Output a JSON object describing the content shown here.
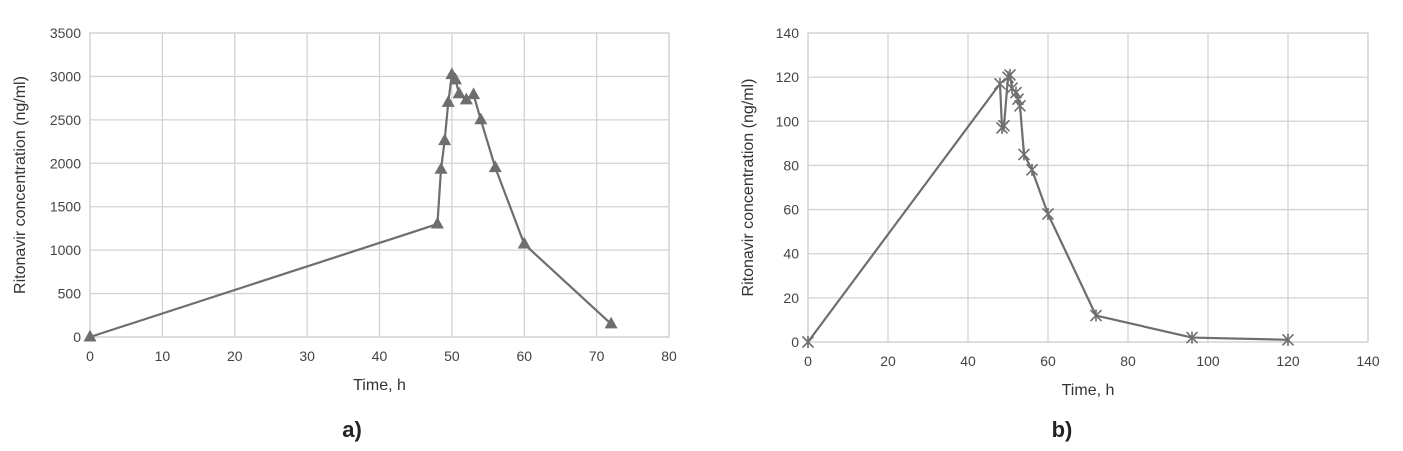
{
  "colors": {
    "series": "#6e6e6e",
    "grid": "#d3d3d3",
    "text": "#444444"
  },
  "chart_data": [
    {
      "type": "line",
      "panel_label": "a)",
      "xlabel": "Time, h",
      "ylabel": "Ritonavir concentration (ng/ml)",
      "xlim": [
        0,
        80
      ],
      "ylim": [
        0,
        3500
      ],
      "x_ticks": [
        0,
        10,
        20,
        30,
        40,
        50,
        60,
        70,
        80
      ],
      "y_ticks": [
        0,
        500,
        1000,
        1500,
        2000,
        2500,
        3000,
        3500
      ],
      "grid": true,
      "marker": "triangle",
      "series": [
        {
          "x": [
            0,
            48,
            48.5,
            49,
            49.5,
            50,
            50.5,
            51,
            52,
            53,
            54,
            56,
            60,
            72
          ],
          "y": [
            0,
            1300,
            1930,
            2260,
            2700,
            3020,
            2960,
            2800,
            2730,
            2790,
            2500,
            1950,
            1070,
            150
          ]
        }
      ]
    },
    {
      "type": "line",
      "panel_label": "b)",
      "xlabel": "Time, h",
      "ylabel": "Ritonavir concentration (ng/ml)",
      "xlim": [
        0,
        140
      ],
      "ylim": [
        0,
        140
      ],
      "x_ticks": [
        0,
        20,
        40,
        60,
        80,
        100,
        120,
        140
      ],
      "y_ticks": [
        0,
        20,
        40,
        60,
        80,
        100,
        120,
        140
      ],
      "grid": true,
      "marker": "star",
      "series": [
        {
          "x": [
            0,
            48,
            48.5,
            49,
            50,
            50.5,
            51,
            52,
            52.5,
            53,
            54,
            56,
            60,
            72,
            96,
            120
          ],
          "y": [
            0,
            117,
            97,
            98,
            120,
            121,
            115,
            113,
            110,
            107,
            85,
            78,
            58,
            12,
            2,
            1
          ]
        }
      ]
    }
  ]
}
